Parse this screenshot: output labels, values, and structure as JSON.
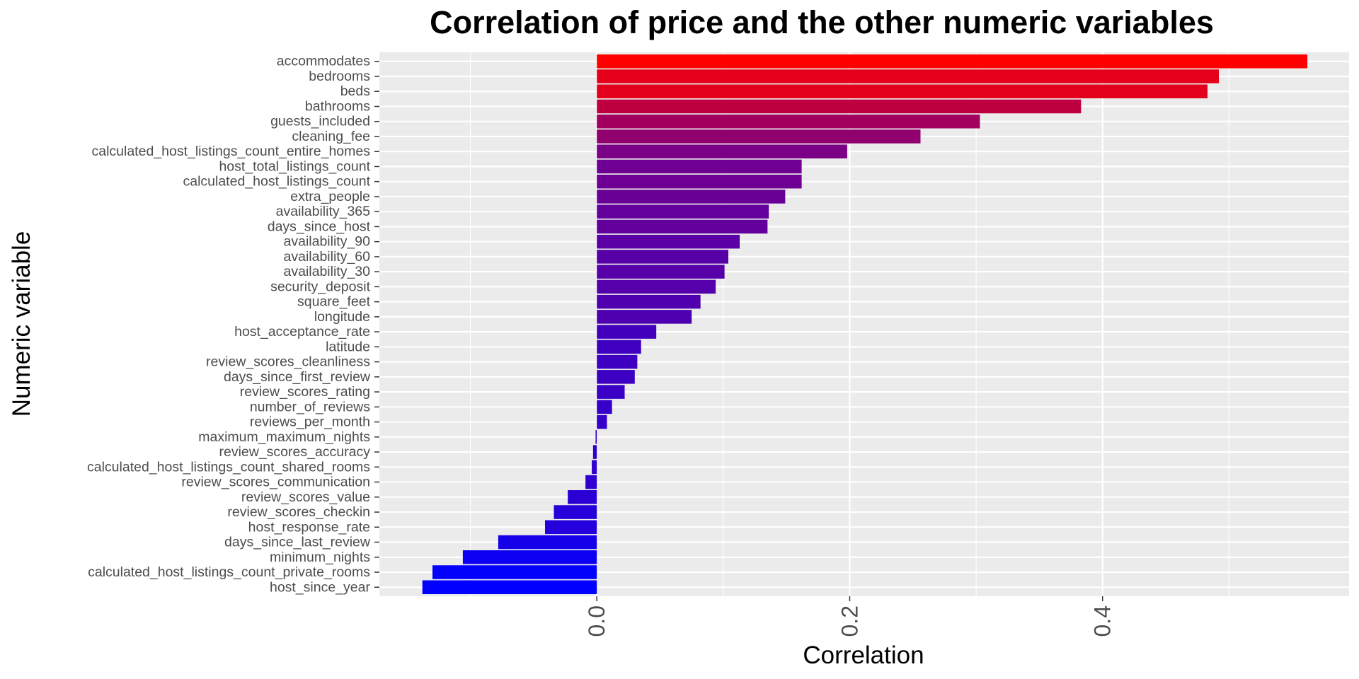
{
  "chart_data": {
    "type": "bar",
    "orientation": "horizontal",
    "title": "Correlation of price and the other numeric variables",
    "xlabel": "Correlation",
    "ylabel": "Numeric variable",
    "xlim": [
      -0.172,
      0.595
    ],
    "x_ticks": [
      0.0,
      0.2,
      0.4
    ],
    "x_tick_labels": [
      "0.0",
      "0.2",
      "0.4"
    ],
    "x_tick_label_rotation": "vertical",
    "grid": true,
    "legend": "none",
    "colors": {
      "panel_background": "#EBEBEB",
      "grid": "#FFFFFF",
      "low": "#0000FF",
      "high": "#FF0000"
    },
    "categories": [
      "accommodates",
      "bedrooms",
      "beds",
      "bathrooms",
      "guests_included",
      "cleaning_fee",
      "calculated_host_listings_count_entire_homes",
      "host_total_listings_count",
      "calculated_host_listings_count",
      "extra_people",
      "availability_365",
      "days_since_host",
      "availability_90",
      "availability_60",
      "availability_30",
      "security_deposit",
      "square_feet",
      "longitude",
      "host_acceptance_rate",
      "latitude",
      "review_scores_cleanliness",
      "days_since_first_review",
      "review_scores_rating",
      "number_of_reviews",
      "reviews_per_month",
      "maximum_maximum_nights",
      "review_scores_accuracy",
      "calculated_host_listings_count_shared_rooms",
      "review_scores_communication",
      "review_scores_value",
      "review_scores_checkin",
      "host_response_rate",
      "days_since_last_review",
      "minimum_nights",
      "calculated_host_listings_count_private_rooms",
      "host_since_year"
    ],
    "values": [
      0.562,
      0.492,
      0.483,
      0.383,
      0.303,
      0.256,
      0.198,
      0.162,
      0.162,
      0.149,
      0.136,
      0.135,
      0.113,
      0.104,
      0.101,
      0.094,
      0.082,
      0.075,
      0.047,
      0.035,
      0.032,
      0.03,
      0.022,
      0.012,
      0.008,
      -0.001,
      -0.003,
      -0.004,
      -0.009,
      -0.023,
      -0.034,
      -0.041,
      -0.078,
      -0.106,
      -0.13,
      -0.138
    ]
  }
}
